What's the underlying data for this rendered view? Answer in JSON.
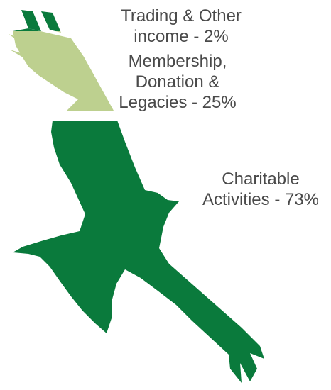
{
  "chart_data": {
    "type": "pie",
    "title": "",
    "slices": [
      {
        "key": "trading",
        "label": "Trading & Other income - 2%",
        "value": 2,
        "color": "#0a7a3c"
      },
      {
        "key": "membership",
        "label": "Membership, Donation & Legacies - 25%",
        "value": 25,
        "color": "#bdd08f"
      },
      {
        "key": "charitable",
        "label": "Charitable Activities - 73%",
        "value": 73,
        "color": "#0a7a3c"
      }
    ]
  },
  "labels": {
    "trading": [
      "Trading & Other",
      "income - 2%"
    ],
    "membership": [
      "Membership,",
      "Donation &",
      "Legacies - 25%"
    ],
    "charitable": [
      "Charitable",
      "Activities - 73%"
    ]
  }
}
